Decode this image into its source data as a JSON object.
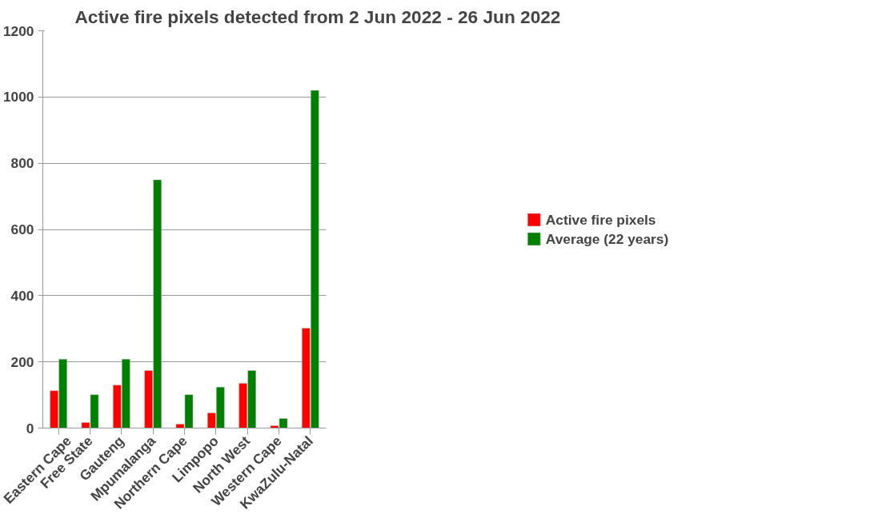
{
  "chart_data": {
    "type": "bar",
    "title": "Active fire pixels detected from 2 Jun 2022 - 26 Jun 2022",
    "categories": [
      "Eastern Cape",
      "Free State",
      "Gauteng",
      "Mpumalanga",
      "Northern Cape",
      "Limpopo",
      "North West",
      "Western Cape",
      "KwaZulu-Natal"
    ],
    "series": [
      {
        "name": "Active fire pixels",
        "color": "#ff0000",
        "values": [
          113,
          17,
          130,
          174,
          12,
          46,
          135,
          7,
          302
        ]
      },
      {
        "name": "Average (22 years)",
        "color": "#008000",
        "values": [
          208,
          101,
          208,
          750,
          101,
          124,
          174,
          29,
          1020
        ]
      }
    ],
    "ylim": [
      0,
      1200
    ],
    "yticks": [
      0,
      200,
      400,
      600,
      800,
      1000,
      1200
    ],
    "grid": "y",
    "legend": "right"
  }
}
